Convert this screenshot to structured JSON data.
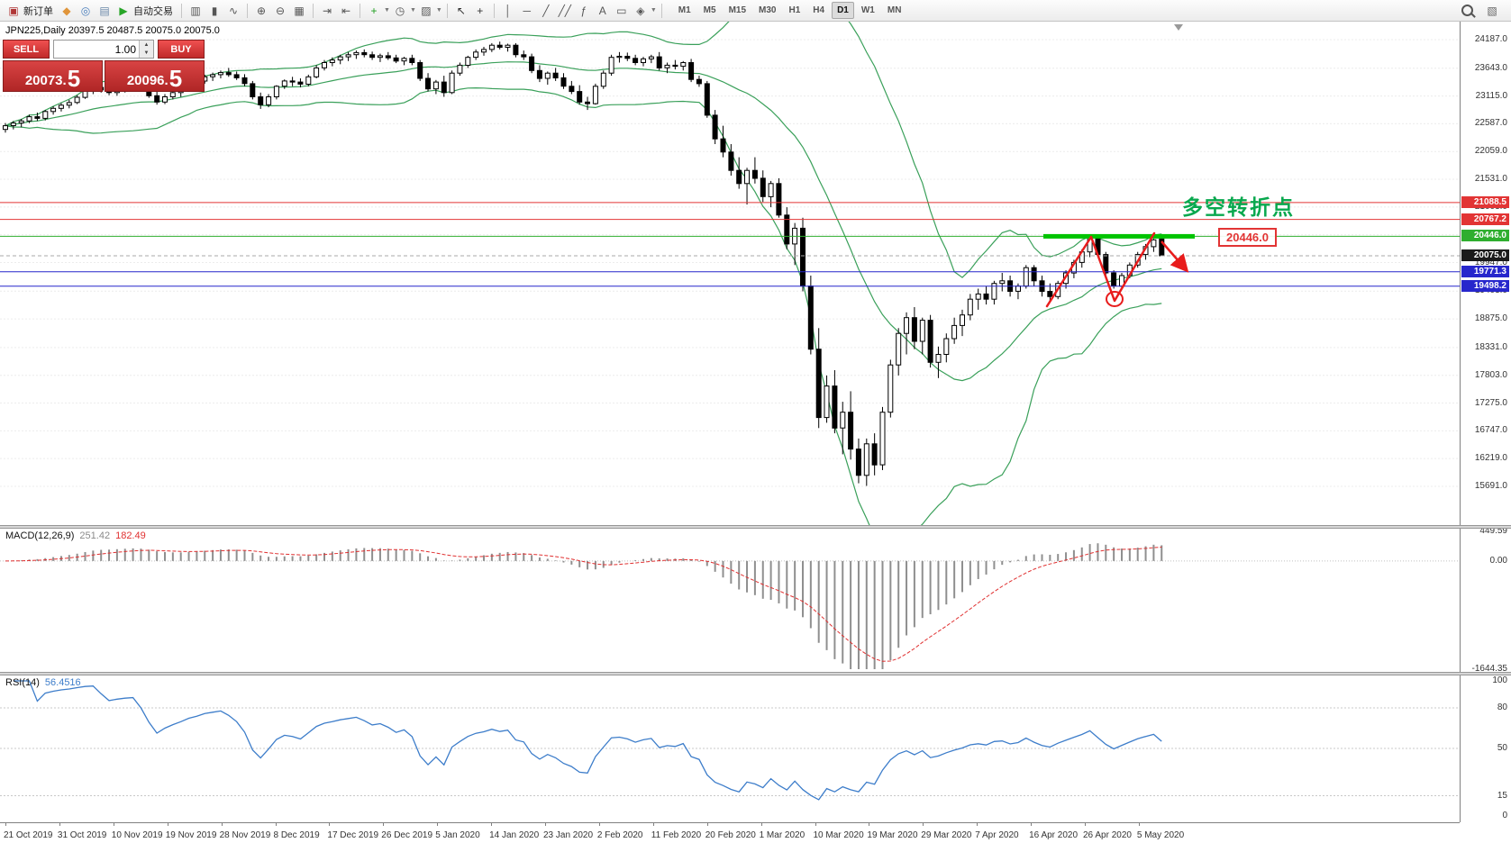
{
  "toolbar": {
    "items": [
      {
        "n": "new-order-button",
        "t": "labelbtn",
        "g": "▣",
        "gc": "#b03636",
        "label": "新订单"
      },
      {
        "n": "market-watch-icon",
        "t": "icon",
        "g": "◆",
        "gc": "#e0953a"
      },
      {
        "n": "navigator-icon",
        "t": "icon",
        "g": "◎",
        "gc": "#4a7ebb"
      },
      {
        "n": "terminal-icon",
        "t": "icon",
        "g": "▤",
        "gc": "#6a87a8"
      },
      {
        "n": "autotrading-button",
        "t": "labelbtn",
        "g": "▶",
        "gc": "#27a527",
        "label": "自动交易"
      },
      {
        "t": "sep"
      },
      {
        "n": "bar-chart-icon",
        "t": "icon",
        "g": "▥",
        "gc": "#555555"
      },
      {
        "n": "candlestick-chart-icon",
        "t": "icon",
        "g": "▮",
        "gc": "#555555"
      },
      {
        "n": "line-chart-icon",
        "t": "icon",
        "g": "∿",
        "gc": "#555555"
      },
      {
        "t": "sep"
      },
      {
        "n": "zoom-in-icon",
        "t": "icon",
        "g": "⊕",
        "gc": "#555555"
      },
      {
        "n": "zoom-out-icon",
        "t": "icon",
        "g": "⊖",
        "gc": "#555555"
      },
      {
        "n": "tile-windows-icon",
        "t": "icon",
        "g": "▦",
        "gc": "#555555"
      },
      {
        "t": "sep"
      },
      {
        "n": "auto-scroll-icon",
        "t": "icon",
        "g": "⇥",
        "gc": "#555555"
      },
      {
        "n": "chart-shift-icon",
        "t": "icon",
        "g": "⇤",
        "gc": "#555555"
      },
      {
        "t": "sep"
      },
      {
        "n": "indicators-button",
        "t": "icondrop",
        "g": "+",
        "gc": "#1d9e1d"
      },
      {
        "n": "periods-button",
        "t": "icondrop",
        "g": "◷",
        "gc": "#555555"
      },
      {
        "n": "templates-button",
        "t": "icondrop",
        "g": "▨",
        "gc": "#555555"
      },
      {
        "t": "sep"
      },
      {
        "n": "cursor-icon",
        "t": "icon",
        "g": "↖",
        "gc": "#333333"
      },
      {
        "n": "crosshair-icon",
        "t": "icon",
        "g": "+",
        "gc": "#333333"
      },
      {
        "t": "sep"
      },
      {
        "n": "vertical-line-icon",
        "t": "icon",
        "g": "│",
        "gc": "#555555"
      },
      {
        "n": "horizontal-line-icon",
        "t": "icon",
        "g": "─",
        "gc": "#555555"
      },
      {
        "n": "trendline-icon",
        "t": "icon",
        "g": "╱",
        "gc": "#555555"
      },
      {
        "n": "equidistant-channel-icon",
        "t": "icon",
        "g": "╱╱",
        "gc": "#555555"
      },
      {
        "n": "fibonacci-icon",
        "t": "icon",
        "g": "ƒ",
        "gc": "#555555"
      },
      {
        "n": "text-icon",
        "t": "icon",
        "g": "A",
        "gc": "#555555"
      },
      {
        "n": "label-icon",
        "t": "icon",
        "g": "▭",
        "gc": "#555555"
      },
      {
        "n": "shapes-button",
        "t": "icondrop",
        "g": "◈",
        "gc": "#555555"
      },
      {
        "t": "sep"
      }
    ],
    "timeframes": [
      "M1",
      "M5",
      "M15",
      "M30",
      "H1",
      "H4",
      "D1",
      "W1",
      "MN"
    ],
    "active_timeframe": "D1"
  },
  "trade": {
    "sell_label": "SELL",
    "buy_label": "BUY",
    "volume": "1.00",
    "sell_price": "20073.",
    "sell_price_big": "5",
    "buy_price": "20096.",
    "buy_price_big": "5"
  },
  "chart": {
    "header": "JPN225,Daily  20397.5 20487.5 20075.0 20075.0",
    "annotation_text": "多空转折点",
    "level_box_label": "20446.0",
    "axis_values": [
      "24187.0",
      "23643.0",
      "23115.0",
      "22587.0",
      "22059.0",
      "21531.0",
      "21003.0",
      "20475.0",
      "19947.0",
      "19403.0",
      "18875.0",
      "18331.0",
      "17803.0",
      "17275.0",
      "16747.0",
      "16219.0",
      "15691.0"
    ],
    "price_tags": [
      {
        "label": "21088.5",
        "value": 21088.5,
        "bg": "#e23434"
      },
      {
        "label": "20767.2",
        "value": 20767.2,
        "bg": "#e23434"
      },
      {
        "label": "20446.0",
        "value": 20446.0,
        "bg": "#2fae2f"
      },
      {
        "label": "20075.0",
        "value": 20075.0,
        "bg": "#1a1a1a"
      },
      {
        "label": "19771.3",
        "value": 19771.3,
        "bg": "#2727cc"
      },
      {
        "label": "19498.2",
        "value": 19498.2,
        "bg": "#2727cc"
      }
    ],
    "h_lines": [
      {
        "value": 21088.5,
        "color": "#e23434"
      },
      {
        "value": 20767.2,
        "color": "#e23434"
      },
      {
        "value": 20446.0,
        "color": "#2fae2f"
      },
      {
        "value": 19771.3,
        "color": "#2727cc"
      },
      {
        "value": 19498.2,
        "color": "#2727cc"
      }
    ],
    "current_price": 20075.0,
    "dates": [
      "21 Oct 2019",
      "31 Oct 2019",
      "10 Nov 2019",
      "19 Nov 2019",
      "28 Nov 2019",
      "8 Dec 2019",
      "17 Dec 2019",
      "26 Dec 2019",
      "5 Jan 2020",
      "14 Jan 2020",
      "23 Jan 2020",
      "2 Feb 2020",
      "11 Feb 2020",
      "20 Feb 2020",
      "1 Mar 2020",
      "10 Mar 2020",
      "19 Mar 2020",
      "29 Mar 2020",
      "7 Apr 2020",
      "16 Apr 2020",
      "26 Apr 2020",
      "5 May 2020"
    ]
  },
  "macd": {
    "label": "MACD(12,26,9)",
    "value1": "251.42",
    "value2": "182.49",
    "axis": [
      "449.59",
      "0.00",
      "-1644.35"
    ],
    "axis_max": 449.59,
    "axis_min": -1644.35
  },
  "rsi": {
    "label": "RSI(14)",
    "value": "56.4516",
    "axis": [
      "100",
      "80",
      "50",
      "15",
      "0"
    ],
    "levels": [
      80,
      50,
      15
    ]
  },
  "chart_data": {
    "type": "candlestick",
    "symbol": "JPN225",
    "timeframe": "Daily",
    "last_bar": {
      "open": 20397.5,
      "high": 20487.5,
      "low": 20075.0,
      "close": 20075.0
    },
    "levels": {
      "resistance": [
        21088.5,
        20767.2
      ],
      "pivot": 20446.0,
      "support": [
        19771.3,
        19498.2
      ],
      "current": 20075.0
    },
    "indicators": [
      "Bollinger Bands",
      "MACD(12,26,9)",
      "RSI(14)"
    ],
    "ohlc": [
      [
        22480,
        22600,
        22420,
        22550
      ],
      [
        22550,
        22640,
        22480,
        22600
      ],
      [
        22600,
        22680,
        22520,
        22640
      ],
      [
        22640,
        22760,
        22600,
        22720
      ],
      [
        22720,
        22800,
        22640,
        22690
      ],
      [
        22690,
        22850,
        22650,
        22820
      ],
      [
        22820,
        22920,
        22760,
        22880
      ],
      [
        22880,
        22980,
        22820,
        22940
      ],
      [
        22940,
        23040,
        22880,
        22990
      ],
      [
        22990,
        23130,
        22960,
        23090
      ],
      [
        23090,
        23250,
        23060,
        23220
      ],
      [
        23220,
        23320,
        23150,
        23280
      ],
      [
        23280,
        23350,
        23180,
        23230
      ],
      [
        23230,
        23300,
        23130,
        23180
      ],
      [
        23180,
        23280,
        23120,
        23250
      ],
      [
        23250,
        23340,
        23180,
        23300
      ],
      [
        23300,
        23380,
        23230,
        23330
      ],
      [
        23330,
        23400,
        23200,
        23250
      ],
      [
        23250,
        23300,
        23080,
        23120
      ],
      [
        23120,
        23200,
        22950,
        23000
      ],
      [
        23000,
        23150,
        22960,
        23100
      ],
      [
        23100,
        23230,
        23050,
        23180
      ],
      [
        23180,
        23300,
        23100,
        23250
      ],
      [
        23250,
        23380,
        23200,
        23340
      ],
      [
        23340,
        23450,
        23280,
        23400
      ],
      [
        23400,
        23520,
        23350,
        23480
      ],
      [
        23480,
        23560,
        23400,
        23520
      ],
      [
        23520,
        23600,
        23450,
        23560
      ],
      [
        23560,
        23650,
        23480,
        23520
      ],
      [
        23520,
        23580,
        23420,
        23460
      ],
      [
        23460,
        23530,
        23300,
        23350
      ],
      [
        23350,
        23400,
        23050,
        23100
      ],
      [
        23100,
        23180,
        22870,
        22950
      ],
      [
        22950,
        23150,
        22900,
        23100
      ],
      [
        23100,
        23320,
        23050,
        23300
      ],
      [
        23300,
        23430,
        23250,
        23400
      ],
      [
        23400,
        23480,
        23300,
        23380
      ],
      [
        23380,
        23450,
        23280,
        23340
      ],
      [
        23340,
        23520,
        23300,
        23480
      ],
      [
        23480,
        23700,
        23450,
        23650
      ],
      [
        23650,
        23800,
        23600,
        23750
      ],
      [
        23750,
        23850,
        23680,
        23800
      ],
      [
        23800,
        23900,
        23720,
        23860
      ],
      [
        23860,
        23950,
        23780,
        23900
      ],
      [
        23900,
        23980,
        23820,
        23940
      ],
      [
        23940,
        24000,
        23850,
        23900
      ],
      [
        23900,
        23960,
        23800,
        23850
      ],
      [
        23850,
        23920,
        23760,
        23880
      ],
      [
        23880,
        23950,
        23800,
        23840
      ],
      [
        23840,
        23900,
        23740,
        23780
      ],
      [
        23780,
        23860,
        23700,
        23830
      ],
      [
        23830,
        23900,
        23700,
        23750
      ],
      [
        23750,
        23800,
        23400,
        23450
      ],
      [
        23450,
        23550,
        23200,
        23250
      ],
      [
        23250,
        23420,
        23150,
        23380
      ],
      [
        23380,
        23500,
        23100,
        23180
      ],
      [
        23180,
        23600,
        23150,
        23550
      ],
      [
        23550,
        23750,
        23500,
        23700
      ],
      [
        23700,
        23880,
        23650,
        23850
      ],
      [
        23850,
        24000,
        23800,
        23950
      ],
      [
        23950,
        24050,
        23880,
        24000
      ],
      [
        24000,
        24120,
        23950,
        24080
      ],
      [
        24080,
        24150,
        24000,
        24040
      ],
      [
        24040,
        24110,
        23960,
        24080
      ],
      [
        24080,
        24120,
        23850,
        23900
      ],
      [
        23900,
        23980,
        23800,
        23860
      ],
      [
        23860,
        23920,
        23550,
        23600
      ],
      [
        23600,
        23700,
        23380,
        23450
      ],
      [
        23450,
        23580,
        23330,
        23550
      ],
      [
        23550,
        23650,
        23400,
        23460
      ],
      [
        23460,
        23550,
        23250,
        23300
      ],
      [
        23300,
        23400,
        23150,
        23200
      ],
      [
        23200,
        23320,
        22950,
        23000
      ],
      [
        23000,
        23100,
        22850,
        22970
      ],
      [
        22970,
        23350,
        22950,
        23300
      ],
      [
        23300,
        23600,
        23250,
        23550
      ],
      [
        23550,
        23900,
        23500,
        23850
      ],
      [
        23850,
        23950,
        23750,
        23870
      ],
      [
        23870,
        23940,
        23780,
        23830
      ],
      [
        23830,
        23900,
        23700,
        23750
      ],
      [
        23750,
        23860,
        23680,
        23820
      ],
      [
        23820,
        23900,
        23740,
        23860
      ],
      [
        23860,
        23950,
        23600,
        23650
      ],
      [
        23650,
        23750,
        23550,
        23700
      ],
      [
        23700,
        23800,
        23620,
        23680
      ],
      [
        23680,
        23780,
        23600,
        23750
      ],
      [
        23750,
        23820,
        23380,
        23430
      ],
      [
        23430,
        23500,
        23290,
        23350
      ],
      [
        23350,
        23400,
        22700,
        22750
      ],
      [
        22750,
        22850,
        22200,
        22300
      ],
      [
        22300,
        22550,
        21950,
        22050
      ],
      [
        22050,
        22200,
        21600,
        21700
      ],
      [
        21700,
        21950,
        21350,
        21450
      ],
      [
        21450,
        21750,
        21050,
        21700
      ],
      [
        21700,
        21950,
        21450,
        21550
      ],
      [
        21550,
        21700,
        21100,
        21200
      ],
      [
        21200,
        21500,
        21000,
        21450
      ],
      [
        21450,
        21550,
        20800,
        20850
      ],
      [
        20850,
        21000,
        20200,
        20300
      ],
      [
        20300,
        20700,
        19900,
        20600
      ],
      [
        20600,
        20800,
        19400,
        19500
      ],
      [
        19500,
        19700,
        18200,
        18300
      ],
      [
        18300,
        18700,
        16800,
        17000
      ],
      [
        17000,
        17800,
        16900,
        17600
      ],
      [
        17600,
        17900,
        16700,
        16800
      ],
      [
        16800,
        17300,
        16300,
        17100
      ],
      [
        17100,
        17500,
        16200,
        16400
      ],
      [
        16400,
        16600,
        15750,
        15900
      ],
      [
        15900,
        16600,
        15700,
        16500
      ],
      [
        16500,
        16700,
        15900,
        16100
      ],
      [
        16100,
        17200,
        16000,
        17100
      ],
      [
        17100,
        18100,
        17000,
        18000
      ],
      [
        18000,
        18700,
        17800,
        18600
      ],
      [
        18600,
        19000,
        18200,
        18900
      ],
      [
        18900,
        19100,
        18300,
        18450
      ],
      [
        18450,
        18900,
        18200,
        18850
      ],
      [
        18850,
        18950,
        17950,
        18050
      ],
      [
        18050,
        18350,
        17750,
        18200
      ],
      [
        18200,
        18600,
        18050,
        18500
      ],
      [
        18500,
        18900,
        18400,
        18750
      ],
      [
        18750,
        19050,
        18550,
        18950
      ],
      [
        18950,
        19350,
        18850,
        19250
      ],
      [
        19250,
        19450,
        19050,
        19350
      ],
      [
        19350,
        19500,
        19150,
        19250
      ],
      [
        19250,
        19600,
        19150,
        19550
      ],
      [
        19550,
        19750,
        19400,
        19600
      ],
      [
        19600,
        19700,
        19300,
        19400
      ],
      [
        19400,
        19550,
        19250,
        19500
      ],
      [
        19500,
        19900,
        19450,
        19850
      ],
      [
        19850,
        19900,
        19500,
        19600
      ],
      [
        19600,
        19700,
        19300,
        19400
      ],
      [
        19400,
        19550,
        19200,
        19300
      ],
      [
        19300,
        19600,
        19250,
        19550
      ],
      [
        19550,
        19800,
        19450,
        19750
      ],
      [
        19750,
        20000,
        19650,
        19950
      ],
      [
        19950,
        20200,
        19850,
        20150
      ],
      [
        20150,
        20460,
        20050,
        20420
      ],
      [
        20420,
        20440,
        20050,
        20100
      ],
      [
        20100,
        20150,
        19700,
        19750
      ],
      [
        19750,
        19800,
        19450,
        19500
      ],
      [
        19500,
        19750,
        19430,
        19700
      ],
      [
        19700,
        19950,
        19650,
        19900
      ],
      [
        19900,
        20150,
        19850,
        20100
      ],
      [
        20100,
        20300,
        20000,
        20250
      ],
      [
        20250,
        20400,
        20150,
        20380
      ],
      [
        20397.5,
        20487.5,
        20075.0,
        20075.0
      ]
    ]
  }
}
